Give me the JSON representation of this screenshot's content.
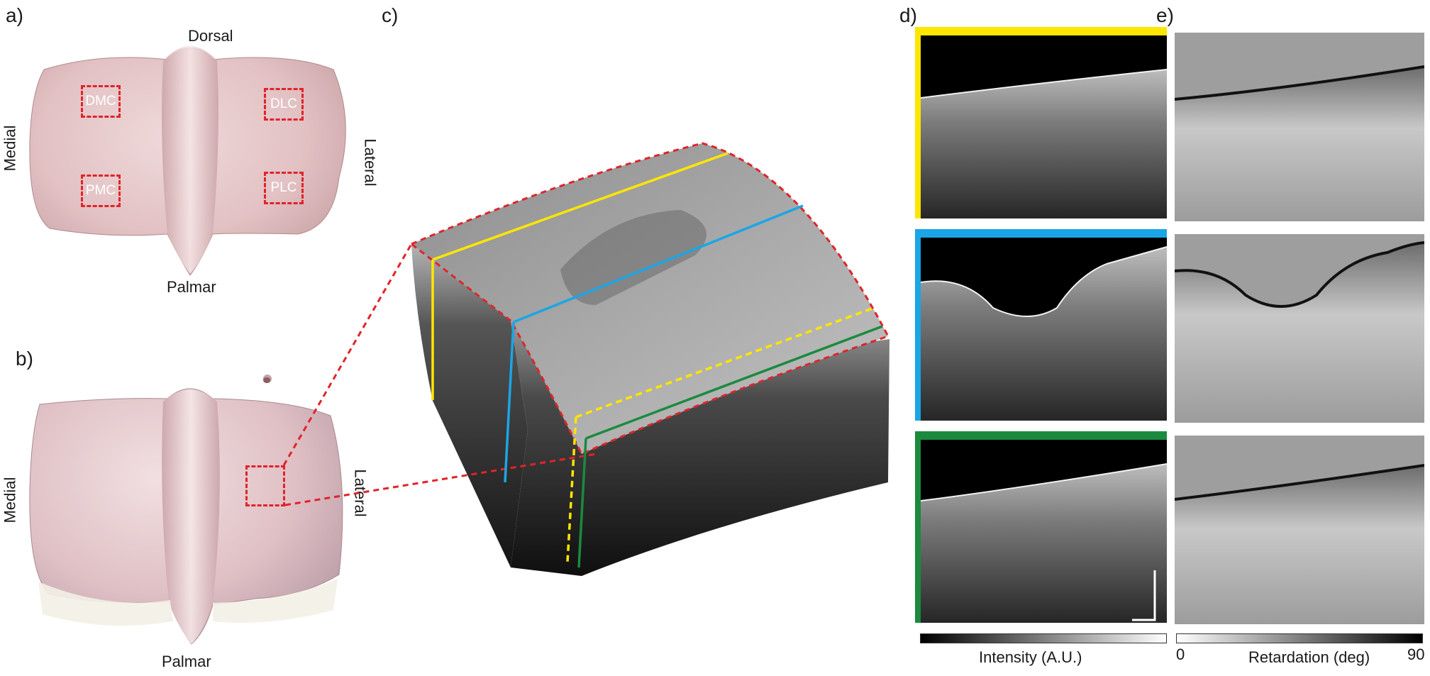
{
  "panel_labels": [
    "a)",
    "b)",
    "c)",
    "d)",
    "e)"
  ],
  "panel_a": {
    "orientation": {
      "top": "Dorsal",
      "bottom": "Palmar",
      "left": "Medial",
      "right": "Lateral"
    },
    "regions": [
      "DMC",
      "DLC",
      "PMC",
      "PLC"
    ]
  },
  "panel_b": {
    "orientation": {
      "bottom": "Palmar",
      "left": "Medial",
      "right": "Lateral"
    }
  },
  "panel_d": {
    "colorbar_label": "Intensity (A.U.)"
  },
  "panel_e": {
    "colorbar_label": "Retardation (deg)",
    "colorbar_min": "0",
    "colorbar_max": "90"
  },
  "colors": {
    "roi": "#e0242a",
    "yellow": "#ffe600",
    "blue": "#1aa6e6",
    "green": "#1b8a3e"
  }
}
